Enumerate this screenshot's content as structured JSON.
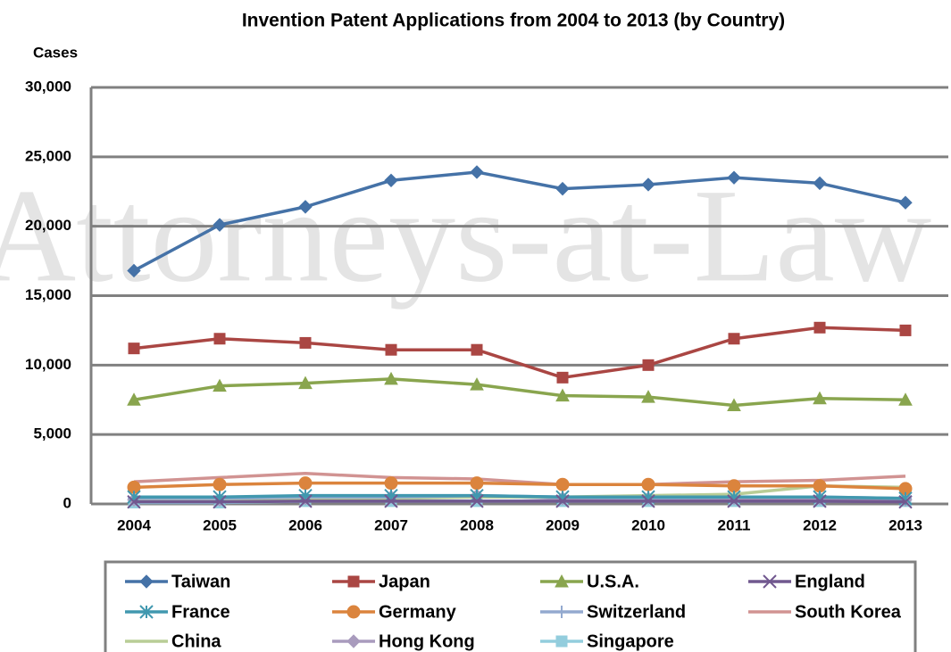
{
  "chart_data": {
    "type": "line",
    "title": "Invention Patent Applications from 2004 to 2013 (by Country)",
    "y_label": "Cases",
    "watermark": "Attorneys-at-Law",
    "categories": [
      "2004",
      "2005",
      "2006",
      "2007",
      "2008",
      "2009",
      "2010",
      "2011",
      "2012",
      "2013"
    ],
    "series": [
      {
        "name": "Taiwan",
        "color": "#4572a7",
        "marker": "diamond",
        "values": [
          16800,
          20100,
          21400,
          23300,
          23900,
          22700,
          23000,
          23500,
          23100,
          21700
        ]
      },
      {
        "name": "Japan",
        "color": "#aa4643",
        "marker": "square",
        "values": [
          11200,
          11900,
          11600,
          11100,
          11100,
          9100,
          10000,
          11900,
          12700,
          12500
        ]
      },
      {
        "name": "U.S.A.",
        "color": "#89a54e",
        "marker": "triangle",
        "values": [
          7500,
          8500,
          8700,
          9000,
          8600,
          7800,
          7700,
          7100,
          7600,
          7500
        ]
      },
      {
        "name": "England",
        "color": "#71588f",
        "marker": "x",
        "values": [
          150,
          150,
          200,
          200,
          200,
          200,
          200,
          200,
          200,
          150
        ]
      },
      {
        "name": "France",
        "color": "#4198af",
        "marker": "star",
        "values": [
          500,
          500,
          600,
          600,
          600,
          500,
          500,
          500,
          500,
          400
        ]
      },
      {
        "name": "Germany",
        "color": "#db843d",
        "marker": "circle",
        "values": [
          1200,
          1400,
          1500,
          1500,
          1500,
          1400,
          1400,
          1300,
          1300,
          1100
        ]
      },
      {
        "name": "Switzerland",
        "color": "#93a9cf",
        "marker": "plus",
        "values": [
          400,
          400,
          500,
          500,
          600,
          500,
          400,
          500,
          500,
          400
        ]
      },
      {
        "name": "South Korea",
        "color": "#d19392",
        "marker": "none",
        "values": [
          1600,
          1900,
          2200,
          1900,
          1800,
          1400,
          1400,
          1600,
          1700,
          2000
        ]
      },
      {
        "name": "China",
        "color": "#b9cd96",
        "marker": "none",
        "values": [
          300,
          300,
          300,
          400,
          500,
          500,
          600,
          700,
          1300,
          1200
        ]
      },
      {
        "name": "Hong Kong",
        "color": "#a99bbd",
        "marker": "diamond",
        "values": [
          300,
          300,
          400,
          500,
          600,
          400,
          400,
          400,
          400,
          300
        ]
      },
      {
        "name": "Singapore",
        "color": "#93cddd",
        "marker": "square",
        "values": [
          100,
          100,
          200,
          200,
          200,
          200,
          200,
          200,
          200,
          200
        ]
      }
    ],
    "ylim": [
      0,
      30000
    ],
    "yticks": [
      0,
      {
        "value": 5000,
        "label": "5,000"
      },
      {
        "value": 10000,
        "label": "10,000"
      },
      {
        "value": 15000,
        "label": "15,000"
      },
      {
        "value": 20000,
        "label": "20,000"
      },
      {
        "value": 25000,
        "label": "25,000"
      },
      {
        "value": 30000,
        "label": "30,000"
      }
    ],
    "grid": true,
    "legend": "bottom"
  }
}
